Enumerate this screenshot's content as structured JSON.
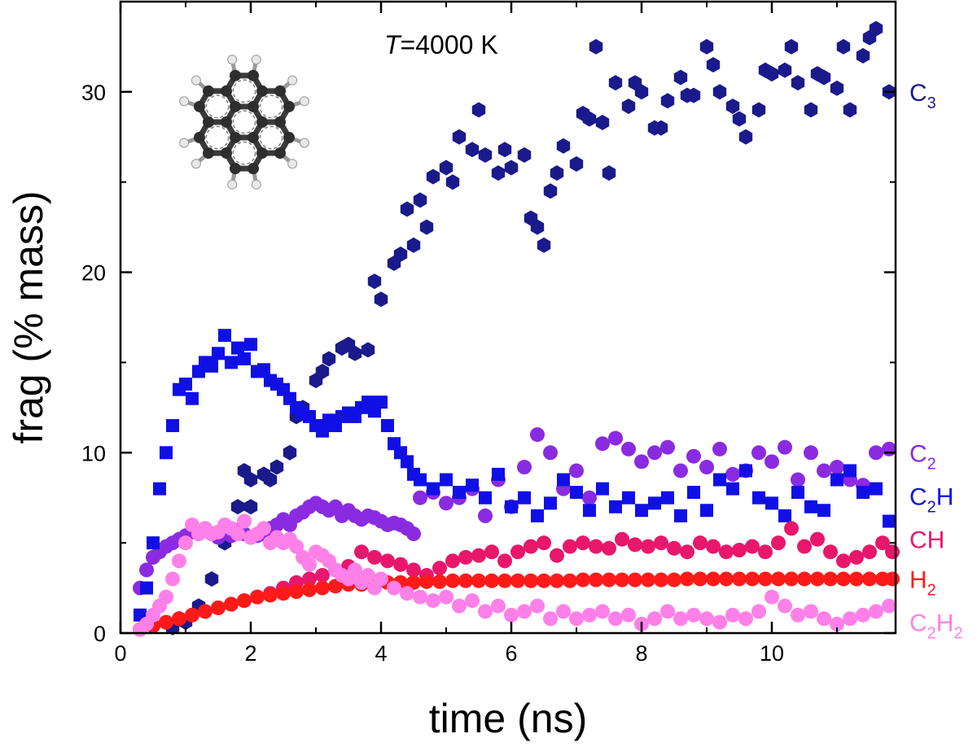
{
  "chart_data": {
    "type": "scatter",
    "title": "",
    "xlabel": "time (ns)",
    "ylabel": "frag (% mass)",
    "xlim": [
      0,
      11.9
    ],
    "ylim": [
      0,
      35
    ],
    "xticks": [
      0,
      2,
      4,
      6,
      8,
      10
    ],
    "yticks": [
      0,
      10,
      20,
      30
    ],
    "annotation": {
      "italic": "T",
      "rest": "=4000 K"
    },
    "inset": "molecule-ball-and-stick",
    "series": [
      {
        "name": "C3",
        "label_main": "C",
        "label_sub": "3",
        "label_y": 30.0,
        "color": "#1a1a8c",
        "marker": "hexagon",
        "x": [
          0.8,
          1.0,
          1.2,
          1.4,
          1.6,
          1.8,
          2.0,
          2.2,
          2.4,
          2.6,
          2.8,
          3.0,
          3.2,
          3.4,
          3.6,
          3.8,
          4.0,
          4.2,
          4.4,
          4.6,
          4.8,
          5.0,
          5.2,
          5.4,
          5.6,
          5.8,
          6.0,
          6.2,
          6.4,
          6.6,
          6.8,
          7.0,
          7.2,
          7.4,
          7.6,
          7.8,
          8.0,
          8.2,
          8.4,
          8.6,
          8.8,
          9.0,
          9.2,
          9.4,
          9.6,
          9.8,
          10.0,
          10.2,
          10.4,
          10.6,
          10.8,
          11.0,
          11.2,
          11.4,
          11.6,
          11.8,
          1.9,
          2.3,
          2.7,
          3.1,
          3.5,
          3.9,
          4.3,
          4.7,
          5.1,
          5.5,
          5.9,
          6.3,
          6.7,
          7.1,
          7.5,
          7.9,
          8.3,
          8.7,
          9.1,
          9.5,
          9.9,
          10.3,
          10.7,
          11.1,
          11.5,
          6.5,
          7.3,
          4.5,
          2.0
        ],
        "y": [
          0.3,
          0.6,
          1.5,
          3.0,
          5.0,
          7.0,
          8.5,
          8.8,
          9.2,
          10.0,
          12.5,
          14.0,
          15.2,
          15.8,
          15.5,
          15.7,
          18.5,
          20.5,
          23.5,
          24.0,
          25.3,
          25.8,
          27.5,
          26.8,
          26.5,
          25.5,
          25.8,
          26.5,
          22.5,
          24.5,
          27.0,
          26.0,
          28.5,
          28.3,
          30.5,
          29.2,
          30.0,
          28.0,
          29.5,
          30.8,
          29.8,
          32.5,
          30.0,
          29.2,
          27.5,
          29.0,
          31.0,
          31.2,
          30.5,
          29.0,
          30.8,
          30.2,
          29.0,
          32.0,
          33.5,
          30.0,
          9.0,
          8.5,
          12.0,
          14.5,
          16.0,
          19.5,
          21.0,
          22.5,
          25.0,
          29.0,
          26.8,
          23.0,
          25.5,
          28.8,
          25.5,
          30.5,
          28.0,
          29.8,
          31.5,
          28.5,
          31.2,
          32.5,
          31.0,
          32.5,
          33.0,
          21.5,
          32.5,
          21.5,
          7.0
        ]
      },
      {
        "name": "C2",
        "label_main": "C",
        "label_sub": "2",
        "label_y": 10.0,
        "color": "#8a2be2",
        "marker": "circle",
        "x": [
          0.3,
          0.4,
          0.5,
          0.6,
          0.7,
          0.8,
          0.9,
          1.0,
          1.1,
          1.2,
          1.3,
          1.4,
          1.5,
          1.6,
          1.7,
          1.8,
          1.9,
          2.0,
          2.1,
          2.2,
          2.3,
          2.4,
          2.5,
          2.6,
          2.7,
          2.8,
          2.9,
          3.0,
          3.1,
          3.2,
          3.3,
          3.4,
          3.5,
          3.6,
          3.7,
          3.8,
          3.9,
          4.0,
          4.1,
          4.2,
          4.3,
          4.4,
          4.5,
          4.6,
          4.8,
          5.0,
          5.2,
          5.4,
          5.6,
          5.8,
          6.0,
          6.2,
          6.4,
          6.6,
          6.8,
          7.0,
          7.2,
          7.4,
          7.6,
          7.8,
          8.0,
          8.2,
          8.4,
          8.6,
          8.8,
          9.0,
          9.2,
          9.4,
          9.6,
          9.8,
          10.0,
          10.2,
          10.4,
          10.6,
          10.8,
          11.0,
          11.2,
          11.4,
          11.6,
          11.8
        ],
        "y": [
          2.5,
          3.5,
          4.2,
          4.5,
          4.8,
          5.0,
          5.2,
          5.4,
          5.6,
          5.5,
          5.8,
          5.5,
          5.3,
          5.6,
          5.4,
          5.7,
          5.5,
          5.3,
          5.4,
          5.5,
          5.8,
          6.0,
          6.3,
          6.0,
          6.5,
          6.7,
          7.0,
          7.2,
          7.0,
          6.8,
          7.0,
          6.5,
          6.8,
          6.5,
          6.3,
          6.5,
          6.4,
          6.2,
          6.0,
          6.1,
          6.0,
          5.8,
          5.5,
          7.5,
          7.8,
          7.2,
          7.5,
          8.0,
          6.5,
          8.5,
          7.0,
          9.2,
          11.0,
          10.0,
          8.0,
          9.0,
          7.5,
          10.5,
          10.8,
          10.2,
          9.5,
          10.0,
          10.3,
          9.0,
          9.8,
          9.2,
          10.2,
          8.8,
          9.0,
          10.0,
          9.5,
          10.3,
          8.5,
          10.0,
          9.0,
          9.2,
          8.5,
          8.2,
          10.0,
          10.2
        ]
      },
      {
        "name": "C2H",
        "label_main": "C",
        "label_sub": "2",
        "label_tail": "H",
        "label_y": 7.6,
        "color": "#1010e6",
        "marker": "square",
        "x": [
          0.3,
          0.4,
          0.5,
          0.6,
          0.7,
          0.8,
          0.9,
          1.0,
          1.1,
          1.2,
          1.3,
          1.4,
          1.5,
          1.6,
          1.7,
          1.8,
          1.9,
          2.0,
          2.1,
          2.2,
          2.3,
          2.4,
          2.5,
          2.6,
          2.7,
          2.8,
          2.9,
          3.0,
          3.1,
          3.2,
          3.3,
          3.4,
          3.5,
          3.6,
          3.7,
          3.8,
          3.9,
          4.0,
          4.1,
          4.2,
          4.3,
          4.4,
          4.5,
          4.6,
          4.8,
          5.0,
          5.2,
          5.4,
          5.6,
          5.8,
          6.0,
          6.2,
          6.4,
          6.6,
          6.8,
          7.0,
          7.2,
          7.4,
          7.6,
          7.8,
          8.0,
          8.2,
          8.4,
          8.6,
          8.8,
          9.0,
          9.2,
          9.4,
          9.6,
          9.8,
          10.0,
          10.2,
          10.4,
          10.6,
          10.8,
          11.0,
          11.2,
          11.4,
          11.6,
          11.8
        ],
        "y": [
          1.0,
          2.5,
          5.0,
          8.0,
          10.0,
          11.5,
          13.5,
          13.8,
          13.0,
          14.5,
          15.0,
          14.8,
          15.5,
          16.5,
          15.0,
          15.8,
          15.2,
          16.0,
          14.5,
          14.6,
          14.0,
          13.8,
          13.5,
          13.0,
          12.5,
          12.2,
          12.0,
          11.5,
          11.2,
          11.8,
          11.5,
          12.0,
          12.2,
          12.0,
          12.5,
          12.8,
          12.3,
          12.8,
          11.5,
          10.5,
          10.0,
          9.5,
          8.8,
          8.5,
          8.0,
          8.5,
          7.8,
          8.2,
          7.5,
          8.8,
          7.0,
          7.5,
          6.5,
          7.2,
          8.5,
          7.8,
          6.8,
          8.0,
          7.0,
          7.5,
          6.8,
          7.2,
          7.5,
          6.5,
          7.8,
          6.8,
          8.5,
          8.0,
          9.0,
          7.5,
          7.2,
          6.5,
          7.8,
          7.0,
          6.8,
          8.5,
          9.0,
          7.8,
          8.0,
          6.2
        ]
      },
      {
        "name": "CH",
        "label_main": "CH",
        "label_sub": "",
        "label_y": 5.2,
        "color": "#e8176b",
        "marker": "circle",
        "x": [
          0.3,
          0.5,
          0.7,
          0.9,
          1.1,
          1.3,
          1.5,
          1.7,
          1.9,
          2.1,
          2.3,
          2.5,
          2.7,
          2.9,
          3.1,
          3.3,
          3.5,
          3.7,
          3.9,
          4.1,
          4.3,
          4.5,
          4.7,
          4.9,
          5.1,
          5.3,
          5.5,
          5.7,
          5.9,
          6.1,
          6.3,
          6.5,
          6.7,
          6.9,
          7.1,
          7.3,
          7.5,
          7.7,
          7.9,
          8.1,
          8.3,
          8.5,
          8.7,
          8.9,
          9.1,
          9.3,
          9.5,
          9.7,
          9.9,
          10.1,
          10.3,
          10.5,
          10.7,
          10.9,
          11.1,
          11.3,
          11.5,
          11.7,
          11.85
        ],
        "y": [
          0.2,
          0.4,
          0.6,
          0.8,
          1.0,
          1.2,
          1.4,
          1.6,
          1.8,
          2.0,
          2.2,
          2.5,
          2.8,
          3.0,
          3.2,
          3.5,
          3.7,
          4.5,
          4.2,
          4.0,
          3.8,
          3.5,
          3.2,
          3.6,
          4.0,
          4.2,
          4.3,
          4.5,
          4.0,
          4.5,
          4.8,
          5.0,
          4.3,
          4.8,
          5.0,
          4.8,
          4.7,
          5.2,
          4.9,
          4.8,
          5.0,
          4.7,
          4.5,
          5.0,
          4.8,
          4.5,
          4.6,
          4.8,
          4.5,
          5.0,
          5.8,
          4.8,
          5.2,
          4.5,
          4.0,
          4.2,
          4.5,
          5.0,
          4.5
        ]
      },
      {
        "name": "H2",
        "label_main": "H",
        "label_sub": "2",
        "label_y": 3.0,
        "color": "#ff1a1a",
        "marker": "circle",
        "x": [
          0.3,
          0.5,
          0.7,
          0.9,
          1.1,
          1.3,
          1.5,
          1.7,
          1.9,
          2.1,
          2.3,
          2.5,
          2.7,
          2.9,
          3.1,
          3.3,
          3.5,
          3.7,
          3.9,
          4.1,
          4.3,
          4.5,
          4.7,
          4.9,
          5.1,
          5.3,
          5.5,
          5.7,
          5.9,
          6.1,
          6.3,
          6.5,
          6.7,
          6.9,
          7.1,
          7.3,
          7.5,
          7.7,
          7.9,
          8.1,
          8.3,
          8.5,
          8.7,
          8.9,
          9.1,
          9.3,
          9.5,
          9.7,
          9.9,
          10.1,
          10.3,
          10.5,
          10.7,
          10.9,
          11.1,
          11.3,
          11.5,
          11.7,
          11.85
        ],
        "y": [
          0.2,
          0.4,
          0.6,
          0.8,
          1.0,
          1.2,
          1.4,
          1.6,
          1.8,
          2.0,
          2.1,
          2.2,
          2.3,
          2.4,
          2.5,
          2.6,
          2.7,
          2.7,
          2.75,
          2.8,
          2.8,
          2.8,
          2.85,
          2.85,
          2.9,
          2.9,
          2.9,
          2.9,
          2.9,
          2.9,
          2.9,
          2.9,
          2.9,
          2.9,
          2.95,
          2.95,
          2.95,
          2.95,
          2.95,
          2.95,
          2.95,
          2.95,
          3.0,
          3.0,
          3.0,
          3.0,
          3.0,
          3.0,
          3.0,
          3.0,
          3.0,
          3.0,
          3.0,
          3.0,
          3.0,
          3.0,
          3.0,
          3.0,
          3.0
        ]
      },
      {
        "name": "C2H2",
        "label_main": "C",
        "label_sub": "2",
        "label_tail": "H",
        "label_sub2": "2",
        "label_y": 0.6,
        "color": "#ff80e8",
        "marker": "circle",
        "x": [
          0.3,
          0.4,
          0.5,
          0.6,
          0.7,
          0.8,
          0.9,
          1.0,
          1.1,
          1.2,
          1.3,
          1.4,
          1.5,
          1.6,
          1.7,
          1.8,
          1.9,
          2.0,
          2.1,
          2.2,
          2.3,
          2.4,
          2.5,
          2.6,
          2.7,
          2.8,
          2.9,
          3.0,
          3.1,
          3.2,
          3.3,
          3.4,
          3.5,
          3.6,
          3.7,
          3.8,
          3.9,
          4.0,
          4.2,
          4.4,
          4.6,
          4.8,
          5.0,
          5.2,
          5.4,
          5.6,
          5.8,
          6.0,
          6.2,
          6.4,
          6.6,
          6.8,
          7.0,
          7.2,
          7.4,
          7.6,
          7.8,
          8.0,
          8.2,
          8.4,
          8.6,
          8.8,
          9.0,
          9.2,
          9.4,
          9.6,
          9.8,
          10.0,
          10.2,
          10.4,
          10.6,
          10.8,
          11.0,
          11.2,
          11.4,
          11.6,
          11.8
        ],
        "y": [
          0.2,
          0.5,
          1.0,
          1.5,
          2.0,
          3.0,
          4.0,
          5.0,
          6.0,
          5.5,
          5.8,
          5.5,
          5.6,
          6.0,
          5.8,
          5.5,
          6.2,
          5.3,
          5.5,
          5.8,
          5.0,
          5.3,
          5.0,
          5.2,
          4.8,
          4.2,
          3.8,
          4.5,
          4.3,
          4.0,
          3.5,
          3.2,
          3.0,
          3.5,
          2.8,
          3.2,
          2.5,
          3.0,
          2.5,
          2.2,
          2.0,
          1.8,
          2.0,
          1.5,
          1.8,
          1.2,
          1.5,
          1.0,
          1.2,
          1.5,
          0.8,
          1.2,
          0.8,
          1.0,
          1.2,
          0.8,
          1.0,
          0.5,
          0.8,
          1.2,
          0.8,
          1.0,
          0.8,
          0.6,
          1.0,
          0.8,
          1.2,
          2.0,
          1.5,
          1.0,
          1.2,
          0.8,
          0.5,
          0.8,
          1.0,
          1.2,
          1.5
        ]
      }
    ]
  }
}
